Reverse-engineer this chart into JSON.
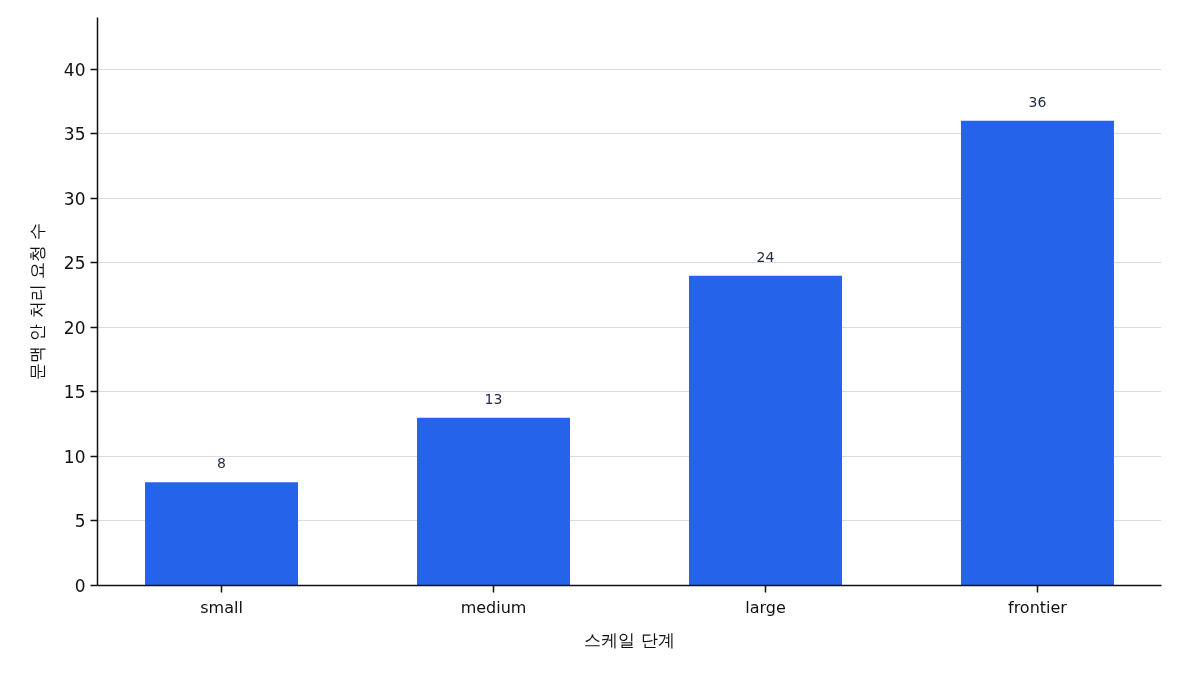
{
  "chart_data": {
    "type": "bar",
    "xlabel": "스케일 단계",
    "ylabel": "문맥 안 처리 요청 수",
    "categories": [
      "small",
      "medium",
      "large",
      "frontier"
    ],
    "values": [
      8,
      13,
      24,
      36
    ],
    "color": "#2563eb",
    "ylim": [
      0,
      44
    ],
    "yticks": [
      0,
      5,
      10,
      15,
      20,
      25,
      30,
      35,
      40
    ],
    "grid": "y",
    "data_labels": true
  }
}
